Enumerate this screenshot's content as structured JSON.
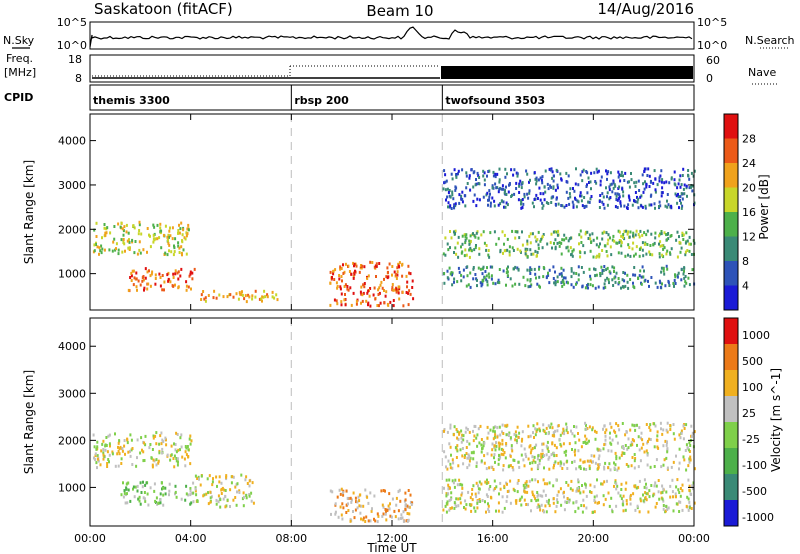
{
  "title": {
    "site": "Saskatoon (fitACF)",
    "beam": "Beam 10",
    "date": "14/Aug/2016"
  },
  "top_panels": {
    "nsky_label": "N.Sky",
    "nsky_ticks_left": [
      "10^5",
      "10^0"
    ],
    "nsearch_label": "N.Search",
    "nsearch_ticks_right": [
      "10^5",
      "10^0"
    ],
    "freq_label_line1": "Freq.",
    "freq_label_line2": "[MHz]",
    "freq_ticks": [
      "18",
      "8"
    ],
    "nave_label": "Nave",
    "nave_ticks": [
      "60",
      "0"
    ],
    "cpid_label": "CPID",
    "cpid_segments": [
      {
        "name": "themis 3300",
        "start_hour": 0.0,
        "end_hour": 8.0
      },
      {
        "name": "rbsp 200",
        "start_hour": 8.0,
        "end_hour": 14.0
      },
      {
        "name": "twofsound 3503",
        "start_hour": 14.0,
        "end_hour": 24.0
      }
    ]
  },
  "chart_data": [
    {
      "type": "heatmap",
      "title": "",
      "xlabel": "",
      "ylabel": "Slant Range [km]",
      "x_ticks": [
        "00:00",
        "04:00",
        "08:00",
        "12:00",
        "16:00",
        "20:00",
        "00:00"
      ],
      "xlim_hours": [
        0,
        24
      ],
      "y_ticks": [
        1000,
        2000,
        3000,
        4000
      ],
      "ylim_km": [
        180,
        4600
      ],
      "colorbar": {
        "label": "Power [dB]",
        "ticks": [
          "4",
          "8",
          "12",
          "16",
          "20",
          "24",
          "28"
        ],
        "colors": [
          "#1b1bd6",
          "#2e53b8",
          "#3a8a76",
          "#4db04a",
          "#c8d62a",
          "#f0a21c",
          "#ec5a18",
          "#e01010"
        ]
      },
      "scatter_regions": [
        {
          "x": [
            0.1,
            3.9
          ],
          "y": [
            1450,
            2200
          ],
          "level": 4
        },
        {
          "x": [
            1.5,
            4.2
          ],
          "y": [
            650,
            1150
          ],
          "level": 6
        },
        {
          "x": [
            4.2,
            7.5
          ],
          "y": [
            400,
            650
          ],
          "level": 5
        },
        {
          "x": [
            9.5,
            12.8
          ],
          "y": [
            300,
            1300
          ],
          "level": 6
        },
        {
          "x": [
            14.0,
            24.0
          ],
          "y": [
            1400,
            2000
          ],
          "level": 3
        },
        {
          "x": [
            14.0,
            24.0
          ],
          "y": [
            700,
            1200
          ],
          "level": 2
        },
        {
          "x": [
            14.0,
            24.0
          ],
          "y": [
            2500,
            3400
          ],
          "level": 1
        }
      ]
    },
    {
      "type": "heatmap",
      "title": "",
      "xlabel": "Time UT",
      "ylabel": "Slant Range [km]",
      "x_ticks": [
        "00:00",
        "04:00",
        "08:00",
        "12:00",
        "16:00",
        "20:00",
        "00:00"
      ],
      "xlim_hours": [
        0,
        24
      ],
      "y_ticks": [
        1000,
        2000,
        3000,
        4000
      ],
      "ylim_km": [
        180,
        4600
      ],
      "colorbar": {
        "label": "Velocity [m s^-1]",
        "ticks": [
          "1000",
          "500",
          "100",
          "25",
          "-25",
          "-100",
          "-500",
          "-1000"
        ],
        "colors": [
          "#1b1bd6",
          "#3a8a76",
          "#4db04a",
          "#7fd04a",
          "#c0c0c0",
          "#f0b020",
          "#ec7a18",
          "#e01010"
        ]
      },
      "scatter_regions": [
        {
          "x": [
            0.1,
            4.0
          ],
          "y": [
            1450,
            2200
          ],
          "level": 4
        },
        {
          "x": [
            1.2,
            4.0
          ],
          "y": [
            650,
            1150
          ],
          "level": 3
        },
        {
          "x": [
            4.0,
            6.5
          ],
          "y": [
            600,
            1300
          ],
          "level": 4
        },
        {
          "x": [
            9.5,
            12.8
          ],
          "y": [
            300,
            1000
          ],
          "level": 5
        },
        {
          "x": [
            14.0,
            24.0
          ],
          "y": [
            1400,
            2400
          ],
          "level": 4
        },
        {
          "x": [
            14.0,
            24.0
          ],
          "y": [
            500,
            1200
          ],
          "level": 4
        }
      ]
    }
  ],
  "colors": {
    "frame": "#000000",
    "dash": "#c8c8c8",
    "background": "#ffffff"
  }
}
